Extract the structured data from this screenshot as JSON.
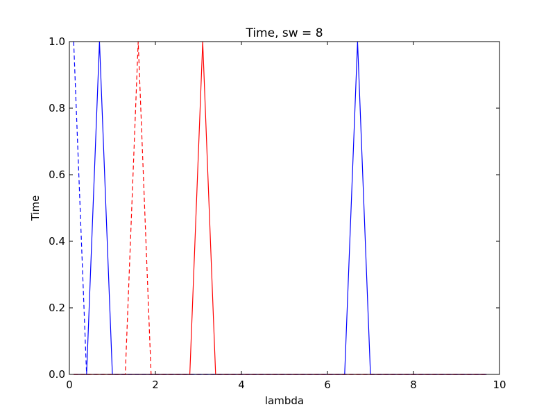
{
  "chart_data": {
    "type": "line",
    "title": "Time, sw = 8",
    "xlabel": "lambda",
    "ylabel": "Time",
    "xlim": [
      0,
      10
    ],
    "ylim": [
      0,
      1
    ],
    "xticks": [
      0,
      2,
      4,
      6,
      8,
      10
    ],
    "xtick_labels": [
      "0",
      "2",
      "4",
      "6",
      "8",
      "10"
    ],
    "yticks": [
      0,
      0.2,
      0.4,
      0.6,
      0.8,
      1.0
    ],
    "ytick_labels": [
      "0.0",
      "0.2",
      "0.4",
      "0.6",
      "0.8",
      "1.0"
    ],
    "grid": false,
    "legend": "none",
    "series": [
      {
        "color": "#0000ff",
        "style": "dashed",
        "x": [
          0.1,
          0.4,
          0.7,
          1.0,
          1.3,
          1.6,
          1.9,
          2.2,
          2.5,
          2.8,
          3.1,
          3.4,
          3.7,
          4.0,
          4.3,
          4.6,
          4.9,
          5.2,
          5.5,
          5.8,
          6.1,
          6.4,
          6.7,
          7.0,
          7.3,
          7.6,
          7.9,
          8.2,
          8.5,
          8.8,
          9.1,
          9.4,
          9.7
        ],
        "y": [
          1,
          0,
          0,
          0,
          0,
          0,
          0,
          0,
          0,
          0,
          0,
          0,
          0,
          0,
          0,
          0,
          0,
          0,
          0,
          0,
          0,
          0,
          0,
          0,
          0,
          0,
          0,
          0,
          0,
          0,
          0,
          0,
          0
        ]
      },
      {
        "color": "#0000ff",
        "style": "solid",
        "x": [
          0.1,
          0.4,
          0.7,
          1.0,
          1.3,
          1.6,
          1.9,
          2.2,
          2.5,
          2.8,
          3.1,
          3.4,
          3.7,
          4.0,
          4.3,
          4.6,
          4.9,
          5.2,
          5.5,
          5.8,
          6.1,
          6.4,
          6.7,
          7.0,
          7.3,
          7.6,
          7.9,
          8.2,
          8.5,
          8.8,
          9.1,
          9.4,
          9.7
        ],
        "y": [
          0,
          0,
          1,
          0,
          0,
          0,
          0,
          0,
          0,
          0,
          0,
          0,
          0,
          0,
          0,
          0,
          0,
          0,
          0,
          0,
          0,
          0,
          1,
          0,
          0,
          0,
          0,
          0,
          0,
          0,
          0,
          0,
          0
        ]
      },
      {
        "color": "#ff0000",
        "style": "dashed",
        "x": [
          0.1,
          0.4,
          0.7,
          1.0,
          1.3,
          1.6,
          1.9,
          2.2,
          2.5,
          2.8,
          3.1,
          3.4,
          3.7,
          4.0,
          4.3,
          4.6,
          4.9,
          5.2,
          5.5,
          5.8,
          6.1,
          6.4,
          6.7,
          7.0,
          7.3,
          7.6,
          7.9,
          8.2,
          8.5,
          8.8,
          9.1,
          9.4,
          9.7
        ],
        "y": [
          0,
          0,
          0,
          0,
          0,
          1,
          0,
          0,
          0,
          0,
          0,
          0,
          0,
          0,
          0,
          0,
          0,
          0,
          0,
          0,
          0,
          0,
          0,
          0,
          0,
          0,
          0,
          0,
          0,
          0,
          0,
          0,
          0
        ]
      },
      {
        "color": "#ff0000",
        "style": "solid",
        "x": [
          0.1,
          0.4,
          0.7,
          1.0,
          1.3,
          1.6,
          1.9,
          2.2,
          2.5,
          2.8,
          3.1,
          3.4,
          3.7,
          4.0,
          4.3,
          4.6,
          4.9,
          5.2,
          5.5,
          5.8,
          6.1,
          6.4,
          6.7,
          7.0,
          7.3,
          7.6,
          7.9,
          8.2,
          8.5,
          8.8,
          9.1,
          9.4,
          9.7
        ],
        "y": [
          0,
          0,
          0,
          0,
          0,
          0,
          0,
          0,
          0,
          0,
          1,
          0,
          0,
          0,
          0,
          0,
          0,
          0,
          0,
          0,
          0,
          0,
          0,
          0,
          0,
          0,
          0,
          0,
          0,
          0,
          0,
          0,
          0
        ]
      }
    ]
  }
}
